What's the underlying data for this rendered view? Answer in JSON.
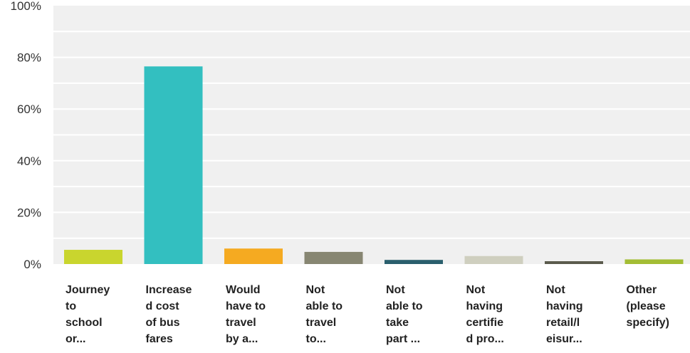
{
  "chart_data": {
    "type": "bar",
    "title": "",
    "xlabel": "",
    "ylabel": "",
    "ylim": [
      0,
      100
    ],
    "y_tick_labels": [
      "0%",
      "20%",
      "40%",
      "60%",
      "80%",
      "100%"
    ],
    "y_tick_values": [
      0,
      20,
      40,
      60,
      80,
      100
    ],
    "grid": true,
    "legend": "none",
    "plot_background": "#f0f0f0",
    "gridline_color": "#ffffff",
    "categories": [
      {
        "lines": [
          "Journey",
          "to",
          "school",
          "or..."
        ]
      },
      {
        "lines": [
          "Increase",
          "d cost",
          "of bus",
          "fares"
        ]
      },
      {
        "lines": [
          "Would",
          "have to",
          "travel",
          "by a..."
        ]
      },
      {
        "lines": [
          "Not",
          "able to",
          "travel",
          "to..."
        ]
      },
      {
        "lines": [
          "Not",
          "able to",
          "take",
          "part ..."
        ]
      },
      {
        "lines": [
          "Not",
          "having",
          "certifie",
          "d pro..."
        ]
      },
      {
        "lines": [
          "Not",
          "having",
          "retail/l",
          "eisur..."
        ]
      },
      {
        "lines": [
          "Other",
          "(please",
          "specify)"
        ]
      }
    ],
    "values": [
      5.5,
      76.5,
      6.0,
      4.7,
      1.6,
      3.1,
      1.1,
      1.8
    ],
    "colors": [
      "#c9d52e",
      "#33bfc0",
      "#f5aa21",
      "#878672",
      "#2a5f6d",
      "#cfcfbf",
      "#5b5b4d",
      "#a3bd34"
    ]
  }
}
